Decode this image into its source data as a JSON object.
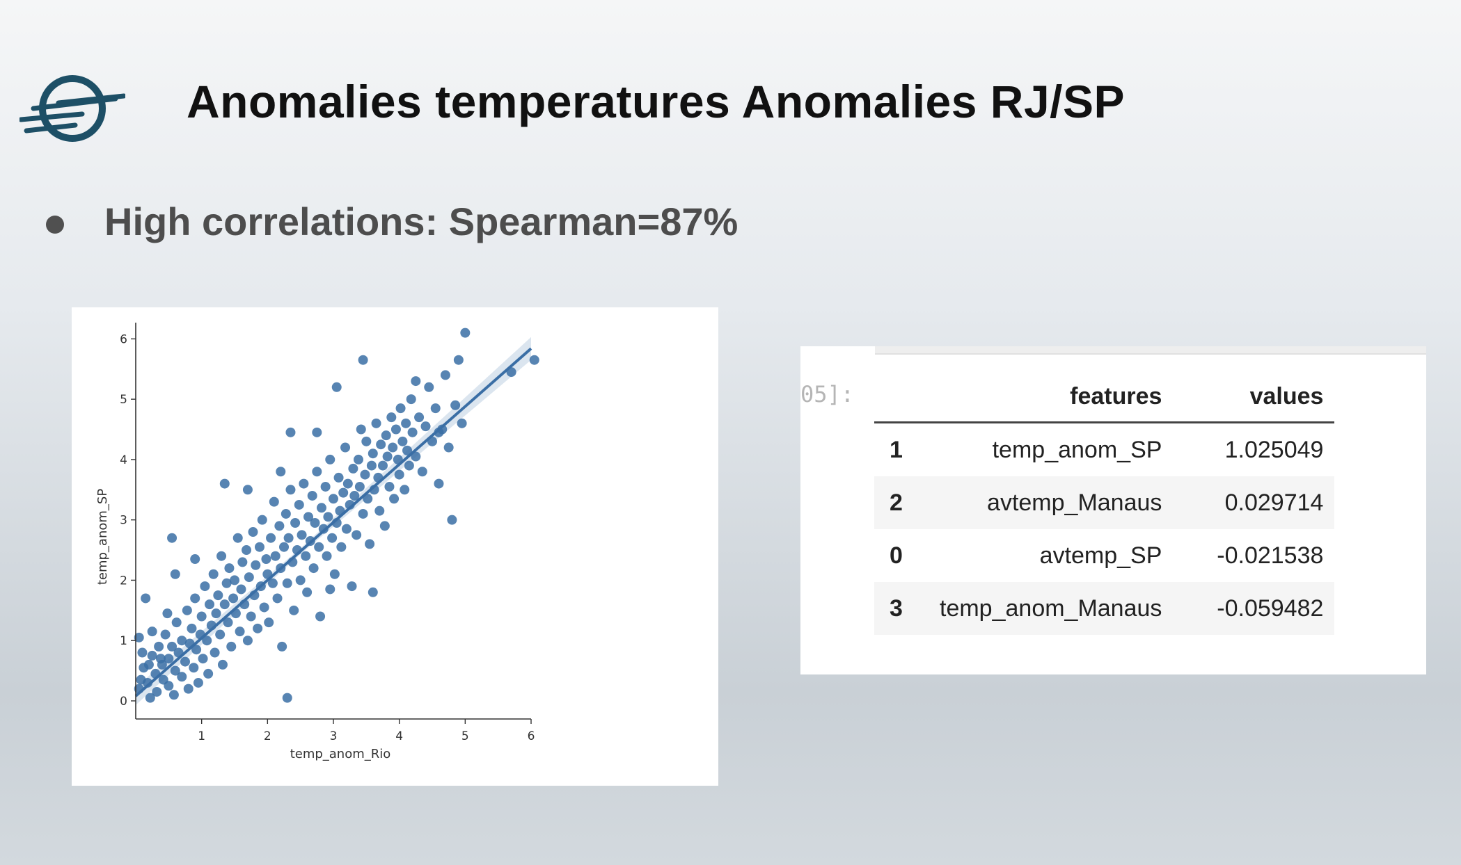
{
  "slide": {
    "title": "Anomalies temperatures Anomalies RJ/SP",
    "bullet": "High correlations: Spearman=87%"
  },
  "logo": {
    "icon": "globe-speed-lines-icon",
    "color": "#1d4f66"
  },
  "chart_data": {
    "type": "scatter",
    "xlabel": "temp_anom_Rio",
    "ylabel": "temp_anom_SP",
    "xlim": [
      0,
      6
    ],
    "ylim": [
      -0.3,
      6.2
    ],
    "xticks": [
      "1",
      "2",
      "3",
      "4",
      "5",
      "6"
    ],
    "yticks": [
      "0",
      "1",
      "2",
      "3",
      "4",
      "5",
      "6"
    ],
    "color": "#3a6ea5",
    "regression": {
      "intercept": 0.08,
      "slope": 0.96,
      "x_range": [
        0,
        6
      ]
    },
    "points": [
      [
        0.08,
        0.35
      ],
      [
        0.12,
        0.55
      ],
      [
        0.05,
        0.2
      ],
      [
        0.2,
        0.6
      ],
      [
        0.18,
        0.3
      ],
      [
        0.25,
        0.75
      ],
      [
        0.3,
        0.45
      ],
      [
        0.32,
        0.15
      ],
      [
        0.35,
        0.9
      ],
      [
        0.4,
        0.6
      ],
      [
        0.42,
        0.35
      ],
      [
        0.45,
        1.1
      ],
      [
        0.5,
        0.7
      ],
      [
        0.5,
        0.25
      ],
      [
        0.55,
        0.9
      ],
      [
        0.6,
        0.5
      ],
      [
        0.62,
        1.3
      ],
      [
        0.65,
        0.8
      ],
      [
        0.7,
        0.4
      ],
      [
        0.7,
        1.0
      ],
      [
        0.75,
        0.65
      ],
      [
        0.78,
        1.5
      ],
      [
        0.8,
        0.2
      ],
      [
        0.82,
        0.95
      ],
      [
        0.85,
        1.2
      ],
      [
        0.88,
        0.55
      ],
      [
        0.9,
        1.7
      ],
      [
        0.92,
        0.85
      ],
      [
        0.95,
        0.3
      ],
      [
        0.98,
        1.1
      ],
      [
        1.0,
        1.4
      ],
      [
        1.02,
        0.7
      ],
      [
        1.05,
        1.9
      ],
      [
        1.08,
        1.0
      ],
      [
        1.1,
        0.45
      ],
      [
        1.12,
        1.6
      ],
      [
        1.15,
        1.25
      ],
      [
        1.18,
        2.1
      ],
      [
        1.2,
        0.8
      ],
      [
        1.22,
        1.45
      ],
      [
        1.25,
        1.75
      ],
      [
        1.28,
        1.1
      ],
      [
        1.3,
        2.4
      ],
      [
        1.32,
        0.6
      ],
      [
        1.35,
        1.6
      ],
      [
        1.38,
        1.95
      ],
      [
        1.4,
        1.3
      ],
      [
        1.42,
        2.2
      ],
      [
        1.45,
        0.9
      ],
      [
        1.48,
        1.7
      ],
      [
        1.5,
        2.0
      ],
      [
        1.52,
        1.45
      ],
      [
        1.55,
        2.7
      ],
      [
        1.58,
        1.15
      ],
      [
        1.6,
        1.85
      ],
      [
        1.62,
        2.3
      ],
      [
        1.65,
        1.6
      ],
      [
        1.68,
        2.5
      ],
      [
        1.7,
        1.0
      ],
      [
        1.72,
        2.05
      ],
      [
        1.75,
        1.4
      ],
      [
        1.78,
        2.8
      ],
      [
        1.8,
        1.75
      ],
      [
        1.82,
        2.25
      ],
      [
        1.85,
        1.2
      ],
      [
        1.88,
        2.55
      ],
      [
        1.9,
        1.9
      ],
      [
        1.92,
        3.0
      ],
      [
        1.95,
        1.55
      ],
      [
        1.98,
        2.35
      ],
      [
        2.0,
        2.1
      ],
      [
        2.02,
        1.3
      ],
      [
        2.05,
        2.7
      ],
      [
        2.08,
        1.95
      ],
      [
        2.1,
        3.3
      ],
      [
        2.12,
        2.4
      ],
      [
        2.15,
        1.7
      ],
      [
        2.18,
        2.9
      ],
      [
        2.2,
        2.2
      ],
      [
        2.22,
        0.9
      ],
      [
        2.25,
        2.55
      ],
      [
        2.28,
        3.1
      ],
      [
        2.3,
        1.95
      ],
      [
        2.32,
        2.7
      ],
      [
        2.35,
        3.5
      ],
      [
        2.38,
        2.3
      ],
      [
        2.4,
        1.5
      ],
      [
        2.42,
        2.95
      ],
      [
        2.45,
        2.5
      ],
      [
        2.48,
        3.25
      ],
      [
        2.5,
        2.0
      ],
      [
        2.52,
        2.75
      ],
      [
        2.55,
        3.6
      ],
      [
        2.58,
        2.4
      ],
      [
        2.6,
        1.8
      ],
      [
        2.62,
        3.05
      ],
      [
        2.65,
        2.65
      ],
      [
        2.68,
        3.4
      ],
      [
        2.7,
        2.2
      ],
      [
        2.72,
        2.95
      ],
      [
        2.75,
        3.8
      ],
      [
        2.78,
        2.55
      ],
      [
        2.8,
        1.4
      ],
      [
        2.82,
        3.2
      ],
      [
        2.85,
        2.85
      ],
      [
        2.88,
        3.55
      ],
      [
        2.9,
        2.4
      ],
      [
        2.92,
        3.05
      ],
      [
        2.95,
        4.0
      ],
      [
        2.98,
        2.7
      ],
      [
        3.0,
        3.35
      ],
      [
        3.02,
        2.1
      ],
      [
        3.05,
        2.95
      ],
      [
        3.08,
        3.7
      ],
      [
        3.1,
        3.15
      ],
      [
        3.12,
        2.55
      ],
      [
        3.15,
        3.45
      ],
      [
        3.18,
        4.2
      ],
      [
        3.2,
        2.85
      ],
      [
        3.22,
        3.6
      ],
      [
        3.25,
        3.25
      ],
      [
        3.28,
        1.9
      ],
      [
        3.3,
        3.85
      ],
      [
        3.32,
        3.4
      ],
      [
        3.35,
        2.75
      ],
      [
        3.38,
        4.0
      ],
      [
        3.4,
        3.55
      ],
      [
        3.42,
        4.5
      ],
      [
        3.45,
        3.1
      ],
      [
        3.48,
        3.75
      ],
      [
        3.5,
        4.3
      ],
      [
        3.52,
        3.35
      ],
      [
        3.55,
        2.6
      ],
      [
        3.58,
        3.9
      ],
      [
        3.6,
        4.1
      ],
      [
        3.62,
        3.5
      ],
      [
        3.65,
        4.6
      ],
      [
        3.68,
        3.7
      ],
      [
        3.7,
        3.15
      ],
      [
        3.72,
        4.25
      ],
      [
        3.75,
        3.9
      ],
      [
        3.78,
        2.9
      ],
      [
        3.8,
        4.4
      ],
      [
        3.82,
        4.05
      ],
      [
        3.85,
        3.55
      ],
      [
        3.88,
        4.7
      ],
      [
        3.9,
        4.2
      ],
      [
        3.92,
        3.35
      ],
      [
        3.95,
        4.5
      ],
      [
        3.98,
        4.0
      ],
      [
        4.0,
        3.75
      ],
      [
        4.02,
        4.85
      ],
      [
        4.05,
        4.3
      ],
      [
        4.08,
        3.5
      ],
      [
        4.1,
        4.6
      ],
      [
        4.12,
        4.15
      ],
      [
        4.15,
        3.9
      ],
      [
        4.18,
        5.0
      ],
      [
        4.2,
        4.45
      ],
      [
        4.25,
        4.05
      ],
      [
        4.3,
        4.7
      ],
      [
        4.35,
        3.8
      ],
      [
        4.4,
        4.55
      ],
      [
        4.45,
        5.2
      ],
      [
        4.5,
        4.3
      ],
      [
        4.55,
        4.85
      ],
      [
        4.6,
        3.6
      ],
      [
        4.65,
        4.5
      ],
      [
        4.7,
        5.4
      ],
      [
        4.75,
        4.2
      ],
      [
        4.8,
        3.0
      ],
      [
        4.85,
        4.9
      ],
      [
        4.9,
        5.65
      ],
      [
        4.95,
        4.6
      ],
      [
        5.0,
        6.1
      ],
      [
        5.7,
        5.45
      ],
      [
        6.05,
        5.65
      ],
      [
        0.15,
        1.7
      ],
      [
        0.25,
        1.15
      ],
      [
        0.6,
        2.1
      ],
      [
        0.55,
        2.7
      ],
      [
        0.9,
        2.35
      ],
      [
        1.35,
        3.6
      ],
      [
        2.3,
        0.05
      ],
      [
        2.35,
        4.45
      ],
      [
        2.75,
        4.45
      ],
      [
        3.05,
        5.2
      ],
      [
        3.45,
        5.65
      ],
      [
        2.2,
        3.8
      ],
      [
        1.7,
        3.5
      ],
      [
        2.95,
        1.85
      ],
      [
        3.6,
        1.8
      ],
      [
        4.25,
        5.3
      ],
      [
        4.6,
        4.45
      ],
      [
        0.05,
        1.05
      ],
      [
        0.1,
        0.8
      ],
      [
        0.22,
        0.05
      ],
      [
        0.38,
        0.7
      ],
      [
        0.48,
        1.45
      ],
      [
        0.58,
        0.1
      ]
    ]
  },
  "table": {
    "prompt": "05]:",
    "headers": [
      "",
      "features",
      "values"
    ],
    "rows": [
      {
        "index": "1",
        "feature": "temp_anom_SP",
        "value": "1.025049"
      },
      {
        "index": "2",
        "feature": "avtemp_Manaus",
        "value": "0.029714"
      },
      {
        "index": "0",
        "feature": "avtemp_SP",
        "value": "-0.021538"
      },
      {
        "index": "3",
        "feature": "temp_anom_Manaus",
        "value": "-0.059482"
      }
    ]
  }
}
